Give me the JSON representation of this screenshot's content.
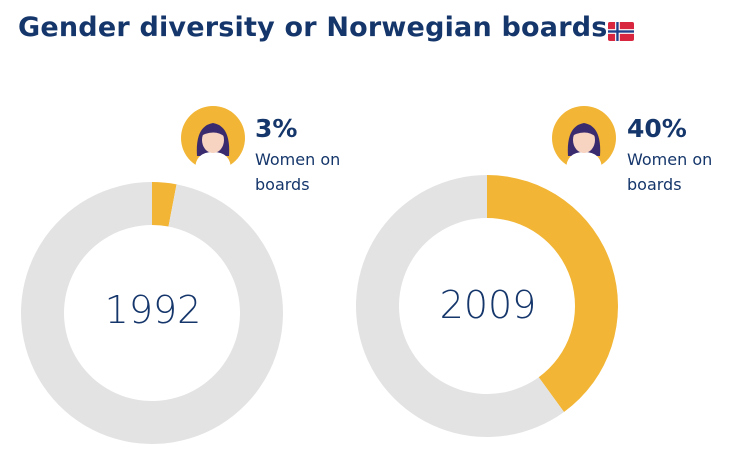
{
  "page_title": "Gender diversity or Norwegian boards",
  "colors": {
    "women": "#f2b535",
    "remainder": "#e3e3e3",
    "text": "#15366b"
  },
  "chart_data": [
    {
      "type": "pie",
      "center_label": "1992",
      "slices": [
        {
          "label": "Women on boards",
          "value": 3
        },
        {
          "label": "",
          "value": 97
        }
      ],
      "value_label": "3%",
      "caption": "Women on boards"
    },
    {
      "type": "pie",
      "center_label": "2009",
      "slices": [
        {
          "label": "Women on boards",
          "value": 40
        },
        {
          "label": "",
          "value": 60
        }
      ],
      "value_label": "40%",
      "caption": "Women on boards"
    }
  ]
}
